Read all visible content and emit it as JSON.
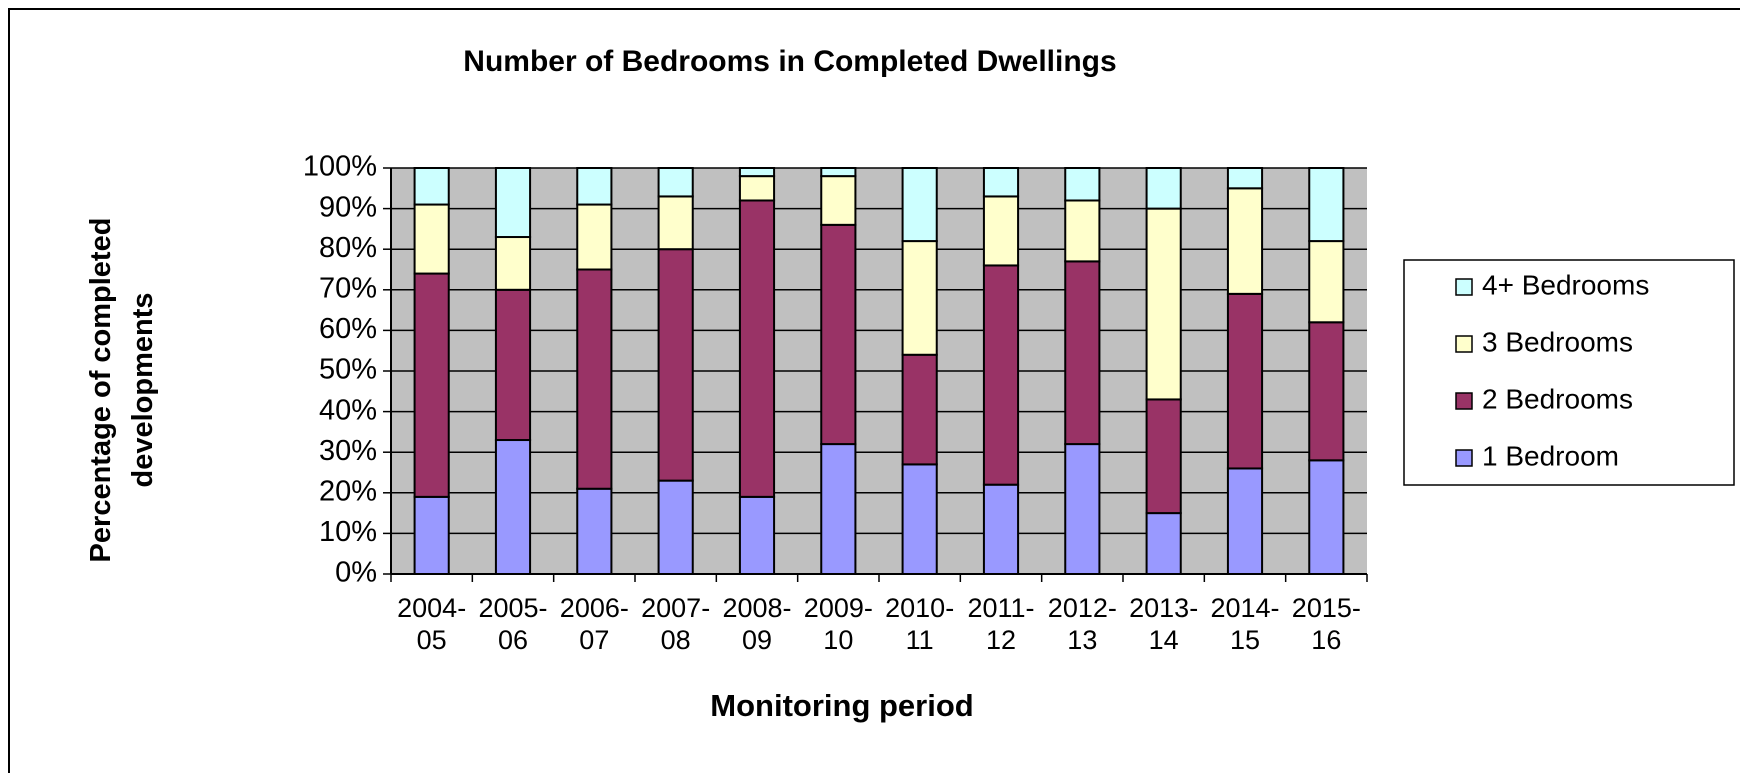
{
  "chart_data": {
    "type": "stacked_bar",
    "title": "Number of Bedrooms in Completed Dwellings",
    "x_label": "Monitoring period",
    "y_label": "Percentage of completed developments",
    "categories": [
      "2004-05",
      "2005-06",
      "2006-07",
      "2007-08",
      "2008-09",
      "2009-10",
      "2010-11",
      "2011-12",
      "2012-13",
      "2013-14",
      "2014-15",
      "2015-16"
    ],
    "series": [
      {
        "name": "1 Bedroom",
        "color": "#9999ff",
        "values": [
          19,
          33,
          21,
          23,
          19,
          32,
          27,
          22,
          32,
          15,
          26,
          28
        ]
      },
      {
        "name": "2 Bedrooms",
        "color": "#993366",
        "values": [
          55,
          37,
          54,
          57,
          73,
          54,
          27,
          54,
          45,
          28,
          43,
          34
        ]
      },
      {
        "name": "3 Bedrooms",
        "color": "#ffffcc",
        "values": [
          17,
          13,
          16,
          13,
          6,
          12,
          28,
          17,
          15,
          47,
          26,
          20
        ]
      },
      {
        "name": "4+ Bedrooms",
        "color": "#ccffff",
        "values": [
          9,
          17,
          9,
          7,
          2,
          2,
          18,
          7,
          8,
          10,
          5,
          18
        ]
      }
    ],
    "ylim": [
      0,
      100
    ],
    "yticks": [
      {
        "value": 0,
        "label": "0%"
      },
      {
        "value": 10,
        "label": "10%"
      },
      {
        "value": 20,
        "label": "20%"
      },
      {
        "value": 30,
        "label": "30%"
      },
      {
        "value": 40,
        "label": "40%"
      },
      {
        "value": 50,
        "label": "50%"
      },
      {
        "value": 60,
        "label": "60%"
      },
      {
        "value": 70,
        "label": "70%"
      },
      {
        "value": 80,
        "label": "80%"
      },
      {
        "value": 90,
        "label": "90%"
      },
      {
        "value": 100,
        "label": "100%"
      }
    ],
    "grid": true,
    "plot_background": "#c0c0c0",
    "legend": "right"
  }
}
